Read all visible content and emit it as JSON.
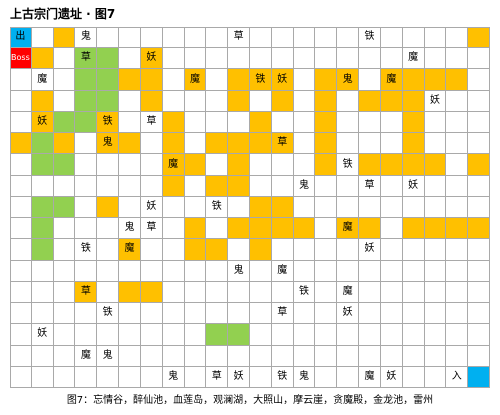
{
  "title": "上古宗门遗址 · 图7",
  "caption": "图7：忘情谷，醉仙池，血莲岛，观澜湖，大照山，摩云崖，贪魔殿，金龙池，雷州",
  "legend_colors": {
    "o": "#ffc000",
    "g": "#92d050",
    "w": "#ffffff",
    "b": "#00b0f0",
    "r": "#ff0000"
  },
  "board": {
    "rows": [
      "bwowwwwwwwwwwwwwwwwwwo",
      "rowggwowwwwwwwwwwwwwww",
      "wwwggoowowooowoowoooow",
      "wowggwowwwowowowooowww",
      "woggowwowwwowwowwwowww",
      "ogowoowowoooowowwwowww",
      "wggwwwwoowowwwowoooowo",
      "wwwwwwwowoowwwwwwwwwww",
      "wggwowwwwwwoowwwwwwwww",
      "wgwwwwwwowoooowoowoooo",
      "wgwwwowwoowowwwwwwwwww",
      "wwwwwwwwwwwwwwwwwwwwww",
      "wwwowoowwwwwwwwwwwwwww",
      "wwwwwwwwwwwwwwwwwwwwww",
      "wwwwwwwwwggwwwwwwwwwww",
      "wwwwwwwwwwwwwwwwwwwwww",
      "wwwwwwwwwwwwwwwwwwwwwb"
    ],
    "labels": [
      {
        "r": 0,
        "c": 0,
        "text": "出"
      },
      {
        "r": 0,
        "c": 3,
        "text": "鬼"
      },
      {
        "r": 0,
        "c": 10,
        "text": "草"
      },
      {
        "r": 0,
        "c": 16,
        "text": "铁"
      },
      {
        "r": 1,
        "c": 0,
        "text": "Boss"
      },
      {
        "r": 1,
        "c": 3,
        "text": "草"
      },
      {
        "r": 1,
        "c": 6,
        "text": "妖"
      },
      {
        "r": 1,
        "c": 18,
        "text": "魔"
      },
      {
        "r": 2,
        "c": 1,
        "text": "魔"
      },
      {
        "r": 2,
        "c": 8,
        "text": "魔"
      },
      {
        "r": 2,
        "c": 11,
        "text": "铁"
      },
      {
        "r": 2,
        "c": 12,
        "text": "妖"
      },
      {
        "r": 2,
        "c": 15,
        "text": "鬼"
      },
      {
        "r": 2,
        "c": 17,
        "text": "魔"
      },
      {
        "r": 3,
        "c": 19,
        "text": "妖"
      },
      {
        "r": 4,
        "c": 1,
        "text": "妖"
      },
      {
        "r": 4,
        "c": 4,
        "text": "铁"
      },
      {
        "r": 4,
        "c": 6,
        "text": "草"
      },
      {
        "r": 5,
        "c": 4,
        "text": "鬼"
      },
      {
        "r": 5,
        "c": 12,
        "text": "草"
      },
      {
        "r": 6,
        "c": 7,
        "text": "魔"
      },
      {
        "r": 6,
        "c": 15,
        "text": "铁"
      },
      {
        "r": 7,
        "c": 13,
        "text": "鬼"
      },
      {
        "r": 7,
        "c": 16,
        "text": "草"
      },
      {
        "r": 7,
        "c": 18,
        "text": "妖"
      },
      {
        "r": 8,
        "c": 6,
        "text": "妖"
      },
      {
        "r": 8,
        "c": 9,
        "text": "铁"
      },
      {
        "r": 9,
        "c": 5,
        "text": "鬼"
      },
      {
        "r": 9,
        "c": 6,
        "text": "草"
      },
      {
        "r": 9,
        "c": 15,
        "text": "魔"
      },
      {
        "r": 10,
        "c": 3,
        "text": "铁"
      },
      {
        "r": 10,
        "c": 5,
        "text": "魔"
      },
      {
        "r": 10,
        "c": 16,
        "text": "妖"
      },
      {
        "r": 11,
        "c": 10,
        "text": "鬼"
      },
      {
        "r": 11,
        "c": 12,
        "text": "魔"
      },
      {
        "r": 12,
        "c": 3,
        "text": "草"
      },
      {
        "r": 12,
        "c": 13,
        "text": "铁"
      },
      {
        "r": 12,
        "c": 15,
        "text": "魔"
      },
      {
        "r": 13,
        "c": 4,
        "text": "铁"
      },
      {
        "r": 13,
        "c": 12,
        "text": "草"
      },
      {
        "r": 13,
        "c": 15,
        "text": "妖"
      },
      {
        "r": 14,
        "c": 1,
        "text": "妖"
      },
      {
        "r": 15,
        "c": 3,
        "text": "魔"
      },
      {
        "r": 15,
        "c": 4,
        "text": "鬼"
      },
      {
        "r": 16,
        "c": 7,
        "text": "鬼"
      },
      {
        "r": 16,
        "c": 9,
        "text": "草"
      },
      {
        "r": 16,
        "c": 10,
        "text": "妖"
      },
      {
        "r": 16,
        "c": 12,
        "text": "铁"
      },
      {
        "r": 16,
        "c": 13,
        "text": "鬼"
      },
      {
        "r": 16,
        "c": 16,
        "text": "魔"
      },
      {
        "r": 16,
        "c": 17,
        "text": "妖"
      },
      {
        "r": 16,
        "c": 20,
        "text": "入"
      }
    ]
  }
}
